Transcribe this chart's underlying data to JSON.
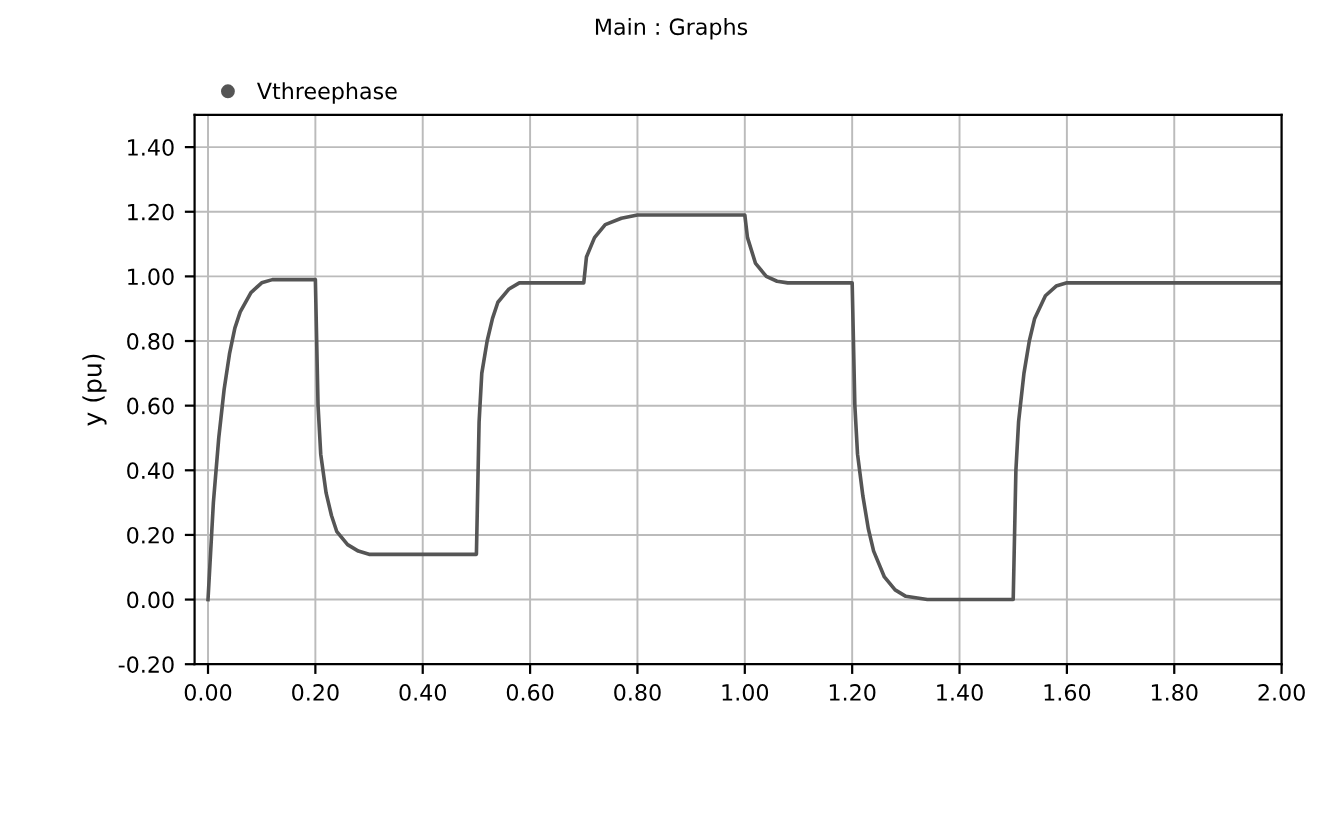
{
  "chart_data": {
    "type": "line",
    "title": "Main : Graphs",
    "ylabel": "y (pu)",
    "x": [
      0.0,
      0.01,
      0.02,
      0.03,
      0.04,
      0.05,
      0.06,
      0.08,
      0.1,
      0.12,
      0.2,
      0.205,
      0.21,
      0.22,
      0.23,
      0.24,
      0.26,
      0.28,
      0.3,
      0.5,
      0.505,
      0.51,
      0.52,
      0.53,
      0.54,
      0.56,
      0.58,
      0.7,
      0.705,
      0.72,
      0.74,
      0.77,
      0.8,
      1.0,
      1.005,
      1.02,
      1.04,
      1.06,
      1.08,
      1.2,
      1.205,
      1.21,
      1.22,
      1.23,
      1.24,
      1.26,
      1.28,
      1.3,
      1.34,
      1.5,
      1.505,
      1.51,
      1.52,
      1.53,
      1.54,
      1.56,
      1.58,
      1.6,
      2.0
    ],
    "series": [
      {
        "name": "Vthreephase",
        "color": "#555555",
        "values": [
          0.0,
          0.3,
          0.5,
          0.65,
          0.76,
          0.84,
          0.89,
          0.95,
          0.98,
          0.99,
          0.99,
          0.6,
          0.45,
          0.33,
          0.26,
          0.21,
          0.17,
          0.15,
          0.14,
          0.14,
          0.55,
          0.7,
          0.8,
          0.87,
          0.92,
          0.96,
          0.98,
          0.98,
          1.06,
          1.12,
          1.16,
          1.18,
          1.19,
          1.19,
          1.12,
          1.04,
          1.0,
          0.985,
          0.98,
          0.98,
          0.6,
          0.45,
          0.32,
          0.22,
          0.15,
          0.07,
          0.03,
          0.01,
          0.0,
          0.0,
          0.4,
          0.55,
          0.7,
          0.8,
          0.87,
          0.94,
          0.97,
          0.98,
          0.98
        ]
      }
    ],
    "xlim": [
      -0.025,
      2.0
    ],
    "ylim": [
      -0.2,
      1.5
    ],
    "xticks": [
      {
        "value": 0.0,
        "label": "0.00"
      },
      {
        "value": 0.2,
        "label": "0.20"
      },
      {
        "value": 0.4,
        "label": "0.40"
      },
      {
        "value": 0.6,
        "label": "0.60"
      },
      {
        "value": 0.8,
        "label": "0.80"
      },
      {
        "value": 1.0,
        "label": "1.00"
      },
      {
        "value": 1.2,
        "label": "1.20"
      },
      {
        "value": 1.4,
        "label": "1.40"
      },
      {
        "value": 1.6,
        "label": "1.60"
      },
      {
        "value": 1.8,
        "label": "1.80"
      },
      {
        "value": 2.0,
        "label": "2.00"
      }
    ],
    "yticks": [
      {
        "value": -0.2,
        "label": "-0.20"
      },
      {
        "value": 0.0,
        "label": "0.00"
      },
      {
        "value": 0.2,
        "label": "0.20"
      },
      {
        "value": 0.4,
        "label": "0.40"
      },
      {
        "value": 0.6,
        "label": "0.60"
      },
      {
        "value": 0.8,
        "label": "0.80"
      },
      {
        "value": 1.0,
        "label": "1.00"
      },
      {
        "value": 1.2,
        "label": "1.20"
      },
      {
        "value": 1.4,
        "label": "1.40"
      }
    ],
    "grid": true,
    "legend": "top left",
    "line_style": "solid"
  }
}
